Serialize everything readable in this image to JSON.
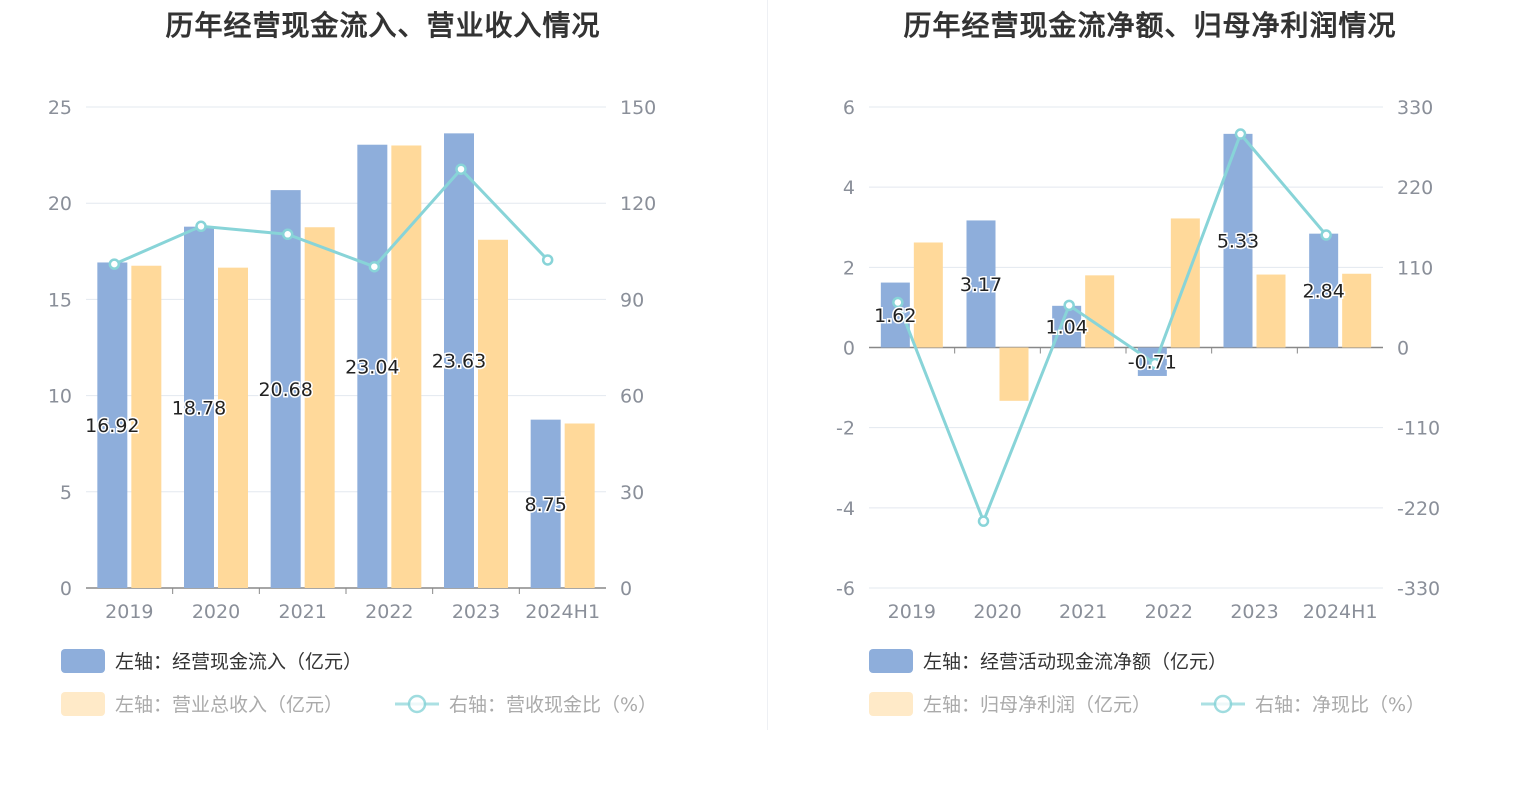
{
  "left": {
    "title": "历年经营现金流入、营业收入情况",
    "legend": [
      {
        "label": "左轴：经营现金流入（亿元）"
      },
      {
        "label": "左轴：营业总收入（亿元）"
      },
      {
        "label": "右轴：营收现金比（%）"
      }
    ]
  },
  "right": {
    "title": "历年经营现金流净额、归母净利润情况",
    "legend": [
      {
        "label": "左轴：经营活动现金流净额（亿元）"
      },
      {
        "label": "左轴：归母净利润（亿元）"
      },
      {
        "label": "右轴：净现比（%）"
      }
    ]
  },
  "colors": {
    "blue_bar": "#8eaedb",
    "orange_bar": "#ffd99a",
    "line": "#88d4d8",
    "grid": "#e3e8ef",
    "axis": "#888888"
  },
  "chart_data": [
    {
      "type": "bar",
      "title": "历年经营现金流入、营业收入情况",
      "categories": [
        "2019",
        "2020",
        "2021",
        "2022",
        "2023",
        "2024H1"
      ],
      "left_ticks": [
        "0",
        "5",
        "10",
        "15",
        "20",
        "25"
      ],
      "right_ticks": [
        "0",
        "30",
        "60",
        "90",
        "120",
        "150"
      ],
      "ylim_left": [
        0,
        25
      ],
      "ylim_right": [
        0,
        150
      ],
      "series": [
        {
          "name": "左轴：经营现金流入（亿元）",
          "type": "bar",
          "axis": "left",
          "values": [
            16.92,
            18.78,
            20.68,
            23.04,
            23.63,
            8.75
          ],
          "labels": [
            "16.92",
            "18.78",
            "20.68",
            "23.04",
            "23.63",
            "8.75"
          ]
        },
        {
          "name": "左轴：营业总收入（亿元）",
          "type": "bar",
          "axis": "left",
          "values": [
            16.75,
            16.65,
            18.75,
            23.0,
            18.1,
            8.55
          ]
        },
        {
          "name": "右轴：营收现金比（%）",
          "type": "line",
          "axis": "right",
          "values": [
            101,
            112.8,
            110.3,
            100.2,
            130.6,
            102.3
          ]
        }
      ],
      "grid": true,
      "legend_position": "bottom"
    },
    {
      "type": "bar",
      "title": "历年经营现金流净额、归母净利润情况",
      "categories": [
        "2019",
        "2020",
        "2021",
        "2022",
        "2023",
        "2024H1"
      ],
      "left_ticks": [
        "-6",
        "-4",
        "-2",
        "0",
        "2",
        "4",
        "6"
      ],
      "right_ticks": [
        "-330",
        "-220",
        "-110",
        "0",
        "110",
        "220",
        "330"
      ],
      "ylim_left": [
        -6,
        6
      ],
      "ylim_right": [
        -330,
        330
      ],
      "series": [
        {
          "name": "左轴：经营活动现金流净额（亿元）",
          "type": "bar",
          "axis": "left",
          "values": [
            1.62,
            3.17,
            1.04,
            -0.71,
            5.33,
            2.84
          ],
          "labels": [
            "1.62",
            "3.17",
            "1.04",
            "-0.71",
            "5.33",
            "2.84"
          ]
        },
        {
          "name": "左轴：归母净利润（亿元）",
          "type": "bar",
          "axis": "left",
          "values": [
            2.62,
            -1.33,
            1.8,
            3.22,
            1.82,
            1.84
          ]
        },
        {
          "name": "右轴：净现比（%）",
          "type": "line",
          "axis": "right",
          "values": [
            61.8,
            -238.3,
            57.8,
            -22.0,
            292.9,
            154.3
          ]
        }
      ],
      "grid": true,
      "legend_position": "bottom"
    }
  ]
}
